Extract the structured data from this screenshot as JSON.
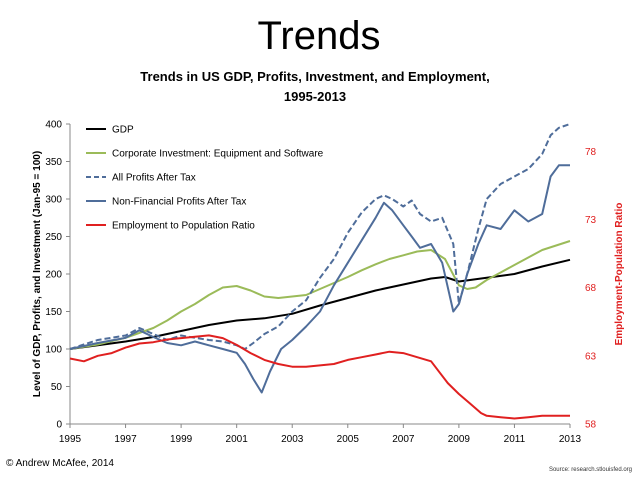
{
  "slide": {
    "title": "Trends",
    "copyright": "© Andrew McAfee, 2014",
    "source": "Source: research.stlouisfed.org"
  },
  "chart_data": {
    "type": "line",
    "title": "Trends in US GDP, Profits, Investment, and Employment, 1995-2013",
    "title_line1": "Trends in US GDP, Profits, Investment, and Employment,",
    "title_line2": "1995-2013",
    "ylabel": "Level of GDP, Profits, and Investment (Jan-95 = 100)",
    "y2label": "Employment-Population Ratio",
    "xlim": [
      1995,
      2013
    ],
    "ylim": [
      0,
      400
    ],
    "y2lim": [
      58,
      80
    ],
    "xticks": [
      "1995",
      "1997",
      "1999",
      "2001",
      "2003",
      "2005",
      "2007",
      "2009",
      "2011",
      "2013"
    ],
    "yticks": [
      "0",
      "50",
      "100",
      "150",
      "200",
      "250",
      "300",
      "350",
      "400"
    ],
    "y2ticks": [
      "58",
      "63",
      "68",
      "73",
      "78"
    ],
    "legend_position": "top-left",
    "colors": {
      "gdp": "#000000",
      "investment": "#9bbb59",
      "all_profits": "#4f6d9a",
      "nonfin_profits": "#4f6d9a",
      "employment": "#e02020",
      "right_axis": "#e02020"
    },
    "series": [
      {
        "name": "GDP",
        "axis": "left",
        "style": "solid",
        "x": [
          1995,
          1996,
          1997,
          1998,
          1999,
          2000,
          2001,
          2002,
          2003,
          2004,
          2005,
          2006,
          2007,
          2008,
          2008.5,
          2009,
          2010,
          2011,
          2012,
          2013
        ],
        "values": [
          100,
          105,
          110,
          116,
          124,
          132,
          138,
          141,
          147,
          158,
          168,
          178,
          186,
          194,
          196,
          190,
          195,
          200,
          210,
          219
        ]
      },
      {
        "name": "Corporate Investment: Equipment and Software",
        "axis": "left",
        "style": "solid",
        "x": [
          1995,
          1996,
          1997,
          1998,
          1998.5,
          1999,
          1999.5,
          2000,
          2000.5,
          2001,
          2001.5,
          2002,
          2002.5,
          2003,
          2003.5,
          2004,
          2004.5,
          2005,
          2005.5,
          2006,
          2006.5,
          2007,
          2007.5,
          2008,
          2008.5,
          2009,
          2009.3,
          2009.6,
          2010,
          2010.5,
          2011,
          2011.5,
          2012,
          2012.5,
          2013
        ],
        "values": [
          100,
          106,
          115,
          128,
          138,
          150,
          160,
          172,
          182,
          184,
          178,
          170,
          168,
          170,
          172,
          180,
          188,
          196,
          205,
          213,
          220,
          225,
          230,
          232,
          220,
          185,
          180,
          182,
          192,
          202,
          212,
          222,
          232,
          238,
          244
        ]
      },
      {
        "name": "All Profits After Tax",
        "axis": "left",
        "style": "dashed",
        "x": [
          1995,
          1996,
          1997,
          1997.5,
          1998,
          1998.5,
          1999,
          1999.5,
          2000,
          2000.5,
          2001,
          2001.3,
          2001.6,
          2002,
          2002.5,
          2003,
          2003.5,
          2004,
          2004.5,
          2005,
          2005.5,
          2006,
          2006.3,
          2006.6,
          2007,
          2007.3,
          2007.6,
          2008,
          2008.4,
          2008.8,
          2009,
          2009.3,
          2009.7,
          2010,
          2010.5,
          2011,
          2011.5,
          2012,
          2012.3,
          2012.6,
          2013
        ],
        "values": [
          100,
          112,
          118,
          128,
          120,
          112,
          118,
          115,
          112,
          110,
          105,
          100,
          108,
          120,
          130,
          150,
          165,
          195,
          220,
          255,
          282,
          300,
          305,
          300,
          290,
          298,
          280,
          270,
          275,
          240,
          160,
          200,
          260,
          300,
          320,
          330,
          340,
          360,
          385,
          395,
          400
        ]
      },
      {
        "name": "Non-Financial Profits After Tax",
        "axis": "left",
        "style": "solid",
        "x": [
          1995,
          1996,
          1997,
          1997.5,
          1998,
          1998.5,
          1999,
          1999.5,
          2000,
          2000.5,
          2001,
          2001.3,
          2001.6,
          2001.9,
          2002.2,
          2002.6,
          2003,
          2003.5,
          2004,
          2004.5,
          2005,
          2005.5,
          2006,
          2006.3,
          2006.6,
          2007,
          2007.3,
          2007.6,
          2008,
          2008.4,
          2008.8,
          2009,
          2009.3,
          2009.7,
          2010,
          2010.5,
          2011,
          2011.5,
          2012,
          2012.3,
          2012.6,
          2013
        ],
        "values": [
          100,
          108,
          115,
          125,
          116,
          108,
          105,
          110,
          105,
          100,
          95,
          80,
          60,
          42,
          70,
          100,
          112,
          130,
          150,
          185,
          215,
          245,
          275,
          295,
          285,
          265,
          250,
          235,
          240,
          215,
          150,
          160,
          200,
          240,
          265,
          260,
          285,
          270,
          280,
          330,
          345,
          345
        ]
      },
      {
        "name": "Employment to Population Ratio",
        "axis": "right",
        "style": "solid",
        "x": [
          1995,
          1995.5,
          1996,
          1996.5,
          1997,
          1997.5,
          1998,
          1998.5,
          1999,
          1999.5,
          2000,
          2000.5,
          2001,
          2001.5,
          2002,
          2002.5,
          2003,
          2003.5,
          2004,
          2004.5,
          2005,
          2005.5,
          2006,
          2006.5,
          2007,
          2007.5,
          2008,
          2008.3,
          2008.6,
          2009,
          2009.4,
          2009.8,
          2010,
          2010.5,
          2011,
          2011.5,
          2012,
          2012.5,
          2013
        ],
        "values": [
          62.8,
          62.6,
          63.0,
          63.2,
          63.6,
          63.9,
          64.0,
          64.2,
          64.3,
          64.4,
          64.5,
          64.3,
          63.8,
          63.2,
          62.7,
          62.4,
          62.2,
          62.2,
          62.3,
          62.4,
          62.7,
          62.9,
          63.1,
          63.3,
          63.2,
          62.9,
          62.6,
          61.8,
          61.0,
          60.2,
          59.5,
          58.8,
          58.6,
          58.5,
          58.4,
          58.5,
          58.6,
          58.6,
          58.6
        ]
      }
    ]
  }
}
